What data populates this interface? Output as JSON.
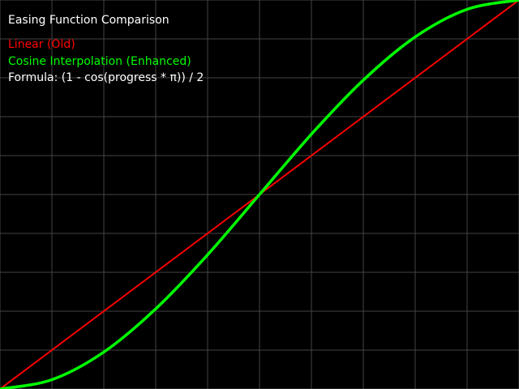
{
  "chart_data": {
    "type": "line",
    "title": "Easing Function Comparison",
    "formula": "Formula: (1 - cos(progress * π)) / 2",
    "xlim": [
      0,
      1
    ],
    "ylim": [
      0,
      1
    ],
    "grid": true,
    "legend_placement": "top-left",
    "x": [
      0,
      0.1,
      0.2,
      0.3,
      0.4,
      0.5,
      0.6,
      0.7,
      0.8,
      0.9,
      1
    ],
    "series": [
      {
        "name": "Linear (Old)",
        "color": "#ff0000",
        "values": [
          0,
          0.1,
          0.2,
          0.3,
          0.4,
          0.5,
          0.6,
          0.7,
          0.8,
          0.9,
          1
        ]
      },
      {
        "name": "Cosine Interpolation (Enhanced)",
        "color": "#00ff00",
        "values": [
          0,
          0.024,
          0.095,
          0.206,
          0.345,
          0.5,
          0.655,
          0.794,
          0.905,
          0.976,
          1
        ]
      }
    ]
  },
  "colors": {
    "background": "#000000",
    "grid": "#444444",
    "text": "#ffffff"
  }
}
